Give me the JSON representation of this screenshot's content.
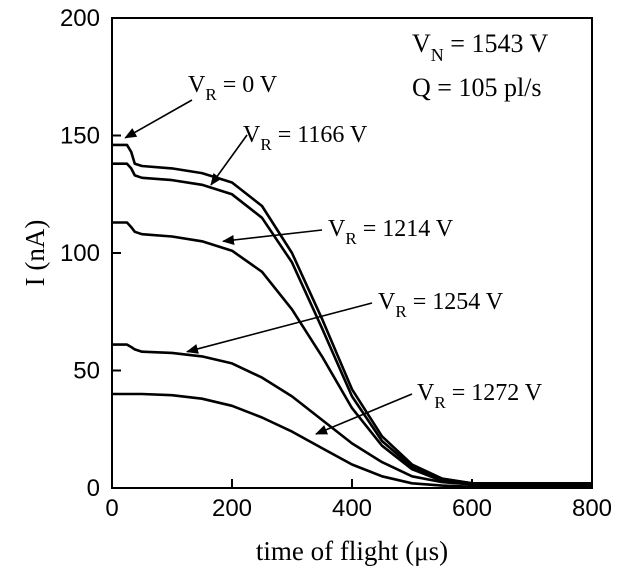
{
  "chart_data": {
    "type": "line",
    "xlabel": "time of flight (μs)",
    "ylabel": "I (nA)",
    "xlim": [
      0,
      800
    ],
    "ylim": [
      0,
      200
    ],
    "x_ticks": [
      0,
      200,
      400,
      600,
      800
    ],
    "y_ticks": [
      0,
      50,
      100,
      150,
      200
    ],
    "grid": false,
    "color": "#000000",
    "annotations_topright": [
      "V_N = 1543 V",
      "Q = 105 pl/s"
    ],
    "series": [
      {
        "name": "V_R = 0 V",
        "plateau": 146,
        "x": [
          0,
          25,
          32,
          38,
          50,
          100,
          150,
          200,
          250,
          300,
          350,
          400,
          450,
          500,
          550,
          600,
          650,
          800
        ],
        "y": [
          146,
          146,
          143,
          138,
          137,
          136,
          134,
          130,
          120,
          100,
          72,
          42,
          22,
          10,
          4,
          2,
          2,
          2
        ]
      },
      {
        "name": "V_R = 1166 V",
        "plateau": 138,
        "x": [
          0,
          25,
          32,
          38,
          50,
          100,
          150,
          200,
          250,
          300,
          350,
          400,
          450,
          500,
          550,
          600,
          650,
          800
        ],
        "y": [
          138,
          138,
          136,
          133,
          132,
          131,
          129,
          125,
          115,
          96,
          68,
          39,
          20,
          9,
          4,
          2,
          2,
          2
        ]
      },
      {
        "name": "V_R = 1214 V",
        "plateau": 113,
        "x": [
          0,
          25,
          32,
          38,
          50,
          100,
          150,
          200,
          250,
          300,
          350,
          400,
          450,
          500,
          550,
          600,
          650,
          800
        ],
        "y": [
          113,
          113,
          111,
          109,
          108,
          107,
          105,
          101,
          92,
          76,
          56,
          34,
          18,
          8,
          3,
          2,
          2,
          2
        ]
      },
      {
        "name": "V_R = 1254 V",
        "plateau": 61,
        "x": [
          0,
          25,
          32,
          38,
          50,
          100,
          150,
          200,
          250,
          300,
          350,
          400,
          450,
          500,
          550,
          600,
          650,
          800
        ],
        "y": [
          61,
          61,
          60,
          59,
          58,
          57.5,
          56,
          53,
          47,
          39,
          29,
          19,
          11,
          5,
          2.5,
          1.5,
          1.5,
          1.5
        ]
      },
      {
        "name": "V_R = 1272 V",
        "x": [
          0,
          50,
          100,
          150,
          200,
          250,
          300,
          350,
          400,
          450,
          500,
          550,
          600,
          800
        ],
        "y": [
          40,
          40,
          39.5,
          38,
          35,
          30,
          24,
          17,
          10,
          5,
          2,
          1,
          0.5,
          0.5
        ]
      }
    ],
    "labels": [
      {
        "series": 0,
        "main": "V",
        "sub": "R",
        "rest": " = 0 V",
        "arrow_to_x": 22,
        "arrow_to_y": 149
      },
      {
        "series": 1,
        "main": "V",
        "sub": "R",
        "rest": " = 1166 V",
        "arrow_to_x": 165,
        "arrow_to_y": 129
      },
      {
        "series": 2,
        "main": "V",
        "sub": "R",
        "rest": " = 1214 V",
        "arrow_to_x": 185,
        "arrow_to_y": 105
      },
      {
        "series": 3,
        "main": "V",
        "sub": "R",
        "rest": " = 1254 V",
        "arrow_to_x": 125,
        "arrow_to_y": 58
      },
      {
        "series": 4,
        "main": "V",
        "sub": "R",
        "rest": " = 1272 V",
        "arrow_to_x": 340,
        "arrow_to_y": 23
      }
    ],
    "topright": [
      {
        "main": "V",
        "sub": "N",
        "rest": " = 1543 V"
      },
      {
        "main": "Q = 105 pl/s",
        "sub": "",
        "rest": ""
      }
    ]
  }
}
